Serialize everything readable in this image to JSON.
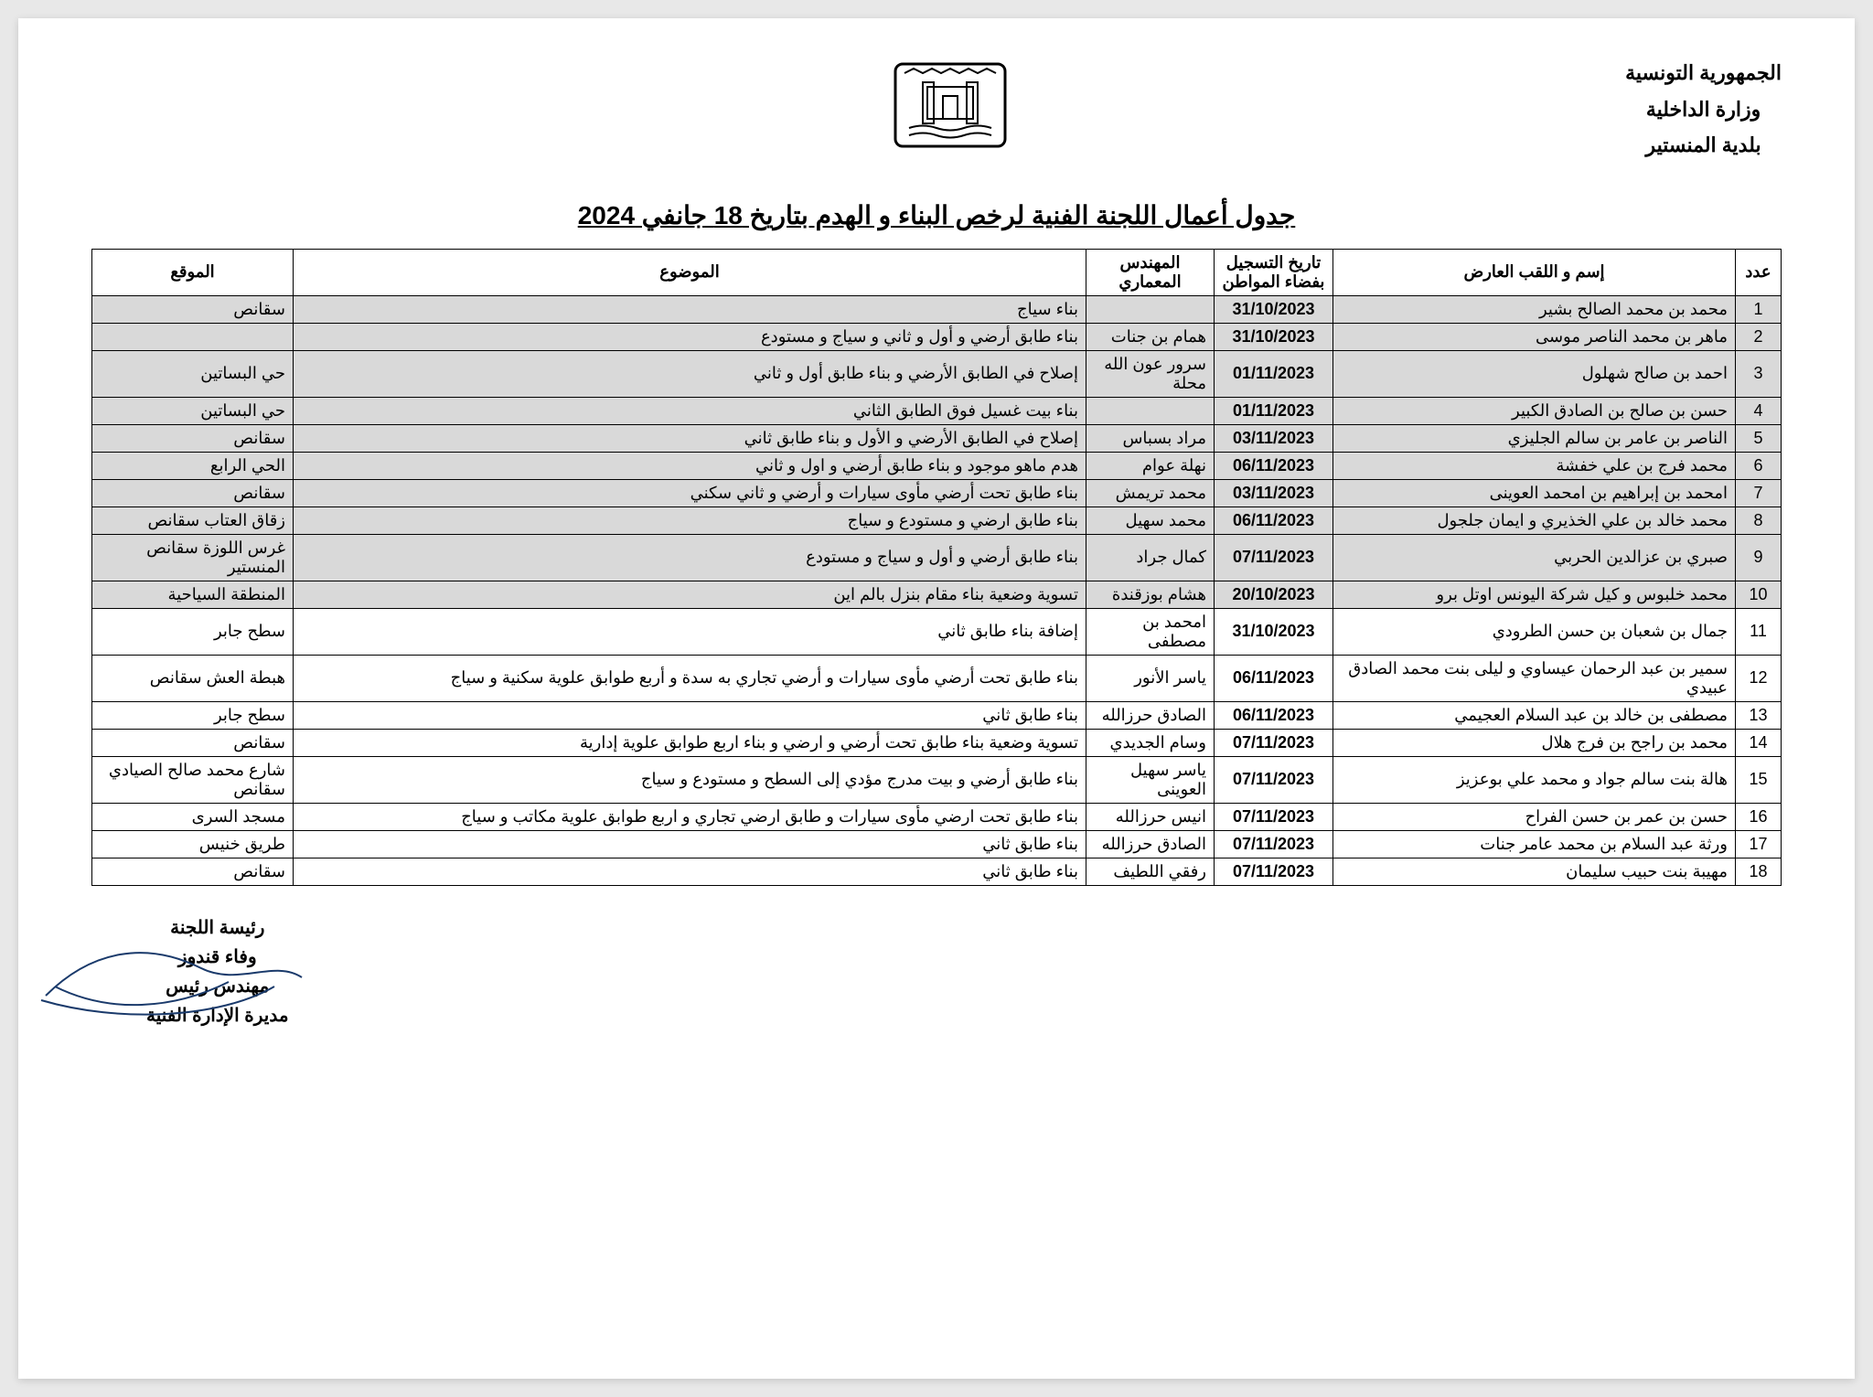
{
  "header": {
    "line1": "الجمهورية التونسية",
    "line2": "وزارة الداخلية",
    "line3": "بلدية المنستير"
  },
  "title": "جدول أعمال اللجنة الفنية لرخص البناء و الهدم بتاريخ 18 جانفي 2024",
  "columns": {
    "num": "عدد",
    "name": "إسم و اللقب العارض",
    "date": "تاريخ التسجيل بفضاء المواطن",
    "engineer": "المهندس المعماري",
    "subject": "الموضوع",
    "location": "الموقع"
  },
  "rows": [
    {
      "n": "1",
      "name": "محمد بن محمد الصالح بشير",
      "date": "31/10/2023",
      "eng": "",
      "subj": "بناء سياج",
      "loc": "سقانص",
      "shaded": true
    },
    {
      "n": "2",
      "name": "ماهر بن محمد الناصر موسى",
      "date": "31/10/2023",
      "eng": "همام بن جنات",
      "subj": "بناء طابق أرضي و أول و ثاني و سياج و مستودع",
      "loc": "",
      "shaded": true
    },
    {
      "n": "3",
      "name": "احمد بن صالح شهلول",
      "date": "01/11/2023",
      "eng": "سرور عون الله محلة",
      "subj": "إصلاح في الطابق الأرضي و بناء طابق أول و ثاني",
      "loc": "حي البساتين",
      "shaded": true
    },
    {
      "n": "4",
      "name": "حسن بن صالح بن الصادق الكبير",
      "date": "01/11/2023",
      "eng": "",
      "subj": "بناء بيت غسيل فوق الطابق الثاني",
      "loc": "حي البساتين",
      "shaded": true
    },
    {
      "n": "5",
      "name": "الناصر بن عامر بن سالم الجليزي",
      "date": "03/11/2023",
      "eng": "مراد بسباس",
      "subj": "إصلاح في الطابق الأرضي و الأول و بناء طابق ثاني",
      "loc": "سقانص",
      "shaded": true
    },
    {
      "n": "6",
      "name": "محمد فرج بن علي خفشة",
      "date": "06/11/2023",
      "eng": "نهلة عوام",
      "subj": "هدم ماهو موجود و بناء طابق أرضي و اول و ثاني",
      "loc": "الحي الرابع",
      "shaded": true
    },
    {
      "n": "7",
      "name": "امحمد بن إبراهيم بن امحمد العوينى",
      "date": "03/11/2023",
      "eng": "محمد تريمش",
      "subj": "بناء طابق تحت أرضي مأوى سيارات و أرضي و ثاني سكني",
      "loc": "سقانص",
      "shaded": true
    },
    {
      "n": "8",
      "name": "محمد خالد بن علي الخذيري و ايمان جلجول",
      "date": "06/11/2023",
      "eng": "محمد سهيل",
      "subj": "بناء طابق ارضي و مستودع و سياج",
      "loc": "زقاق العتاب سقانص",
      "shaded": true
    },
    {
      "n": "9",
      "name": "صبري بن عزالدين الحربي",
      "date": "07/11/2023",
      "eng": "كمال جراد",
      "subj": "بناء طابق أرضي و أول و سياج و مستودع",
      "loc": "غرس اللوزة سقانص المنستير",
      "shaded": true
    },
    {
      "n": "10",
      "name": "محمد خلبوس و كيل شركة اليونس اوتل برو",
      "date": "20/10/2023",
      "eng": "هشام بوزقندة",
      "subj": "تسوية وضعية بناء مقام بنزل بالم اين",
      "loc": "المنطقة السياحية",
      "shaded": true
    },
    {
      "n": "11",
      "name": "جمال بن شعبان بن حسن الطرودي",
      "date": "31/10/2023",
      "eng": "امحمد بن مصطفى",
      "subj": "إضافة بناء طابق ثاني",
      "loc": "سطح جابر",
      "shaded": false
    },
    {
      "n": "12",
      "name": "سمير بن عبد الرحمان عيساوي و ليلى بنت محمد الصادق عبيدي",
      "date": "06/11/2023",
      "eng": "ياسر الأنور",
      "subj": "بناء طابق تحت أرضي مأوى سيارات و أرضي تجاري به سدة و أربع طوابق علوية سكنية و سياج",
      "loc": "هبطة العش سقانص",
      "shaded": false
    },
    {
      "n": "13",
      "name": "مصطفى بن خالد بن عبد السلام العجيمي",
      "date": "06/11/2023",
      "eng": "الصادق حرزالله",
      "subj": "بناء طابق ثاني",
      "loc": "سطح جابر",
      "shaded": false
    },
    {
      "n": "14",
      "name": "محمد بن راجح بن فرج هلال",
      "date": "07/11/2023",
      "eng": "وسام الجديدي",
      "subj": "تسوية وضعية بناء طابق تحت أرضي و ارضي و بناء اربع طوابق علوية إدارية",
      "loc": "سقانص",
      "shaded": false
    },
    {
      "n": "15",
      "name": "هالة بنت سالم جواد و محمد علي بوعزيز",
      "date": "07/11/2023",
      "eng": "ياسر سهيل العوينى",
      "subj": "بناء طابق أرضي و بيت مدرج مؤدي إلى السطح و مستودع و سياج",
      "loc": "شارع محمد صالح الصيادي سقانص",
      "shaded": false
    },
    {
      "n": "16",
      "name": "حسن بن عمر بن حسن الفراح",
      "date": "07/11/2023",
      "eng": "انيس حرزالله",
      "subj": "بناء طابق تحت ارضي مأوى سيارات و طابق ارضي تجاري و اربع طوابق علوية مكاتب و سياج",
      "loc": "مسجد السرى",
      "shaded": false
    },
    {
      "n": "17",
      "name": "ورثة عبد السلام بن محمد عامر جنات",
      "date": "07/11/2023",
      "eng": "الصادق حرزالله",
      "subj": "بناء طابق ثاني",
      "loc": "طريق خنيس",
      "shaded": false
    },
    {
      "n": "18",
      "name": "مهيبة بنت حبيب سليمان",
      "date": "07/11/2023",
      "eng": "رفقي اللطيف",
      "subj": "بناء طابق ثاني",
      "loc": "سقانص",
      "shaded": false
    }
  ],
  "signature": {
    "line1": "رئيسة اللجنة",
    "line2": "وفاء قندوز",
    "line3": "مهندس رئيس",
    "line4": "مديرة الإدارة الفنية"
  },
  "colors": {
    "page_bg": "#ffffff",
    "outer_bg": "#e8e8e8",
    "shaded_row": "#d9d9d9",
    "border": "#000000",
    "text": "#000000"
  }
}
